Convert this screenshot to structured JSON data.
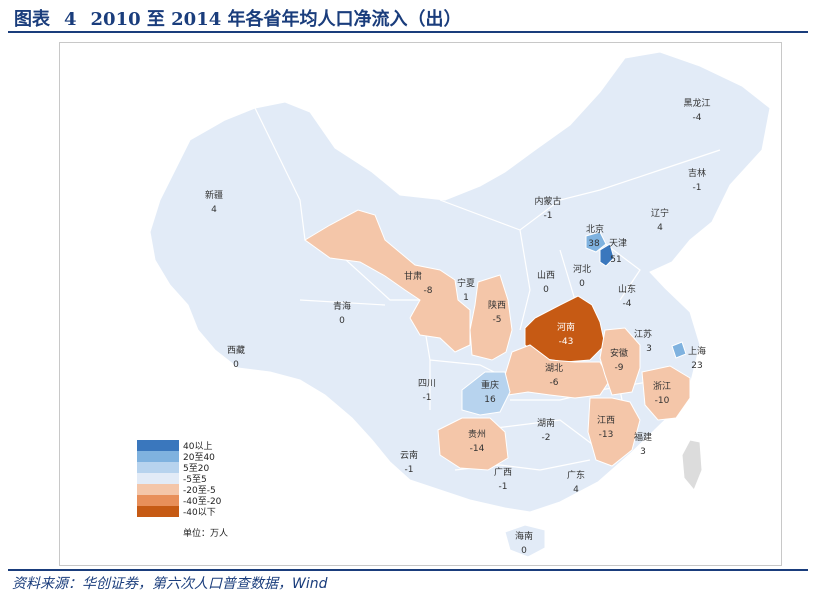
{
  "header": {
    "prefix": "图表",
    "number": "4",
    "title": "2010 至 2014 年各省年均人口净流入（出）"
  },
  "footer": {
    "source": "资料来源：华创证券，第六次人口普查数据，Wind"
  },
  "legend": {
    "items": [
      {
        "label": "40以上",
        "color": "#3a77bd"
      },
      {
        "label": "20至40",
        "color": "#7fb2df"
      },
      {
        "label": "5至20",
        "color": "#b7d3ee"
      },
      {
        "label": "-5至5",
        "color": "#e2ebf7"
      },
      {
        "label": "-20至-5",
        "color": "#f4c6a9"
      },
      {
        "label": "-40至-20",
        "color": "#e88f5a"
      },
      {
        "label": "-40以下",
        "color": "#c65a14"
      }
    ],
    "unit": "单位：万人"
  },
  "colors": {
    "title": "#1a3d7c",
    "land": "#e2ebf7",
    "border": "#ffffff"
  },
  "provinces": [
    {
      "name": "黑龙江",
      "value": "-4"
    },
    {
      "name": "吉林",
      "value": "-1"
    },
    {
      "name": "辽宁",
      "value": "4"
    },
    {
      "name": "内蒙古",
      "value": "-1"
    },
    {
      "name": "北京",
      "value": "38"
    },
    {
      "name": "天津",
      "value": "51"
    },
    {
      "name": "河北",
      "value": "0"
    },
    {
      "name": "山西",
      "value": "0"
    },
    {
      "name": "山东",
      "value": "-4"
    },
    {
      "name": "新疆",
      "value": "4"
    },
    {
      "name": "甘肃",
      "value": "-8"
    },
    {
      "name": "宁夏",
      "value": "1"
    },
    {
      "name": "陕西",
      "value": "-5"
    },
    {
      "name": "青海",
      "value": "0"
    },
    {
      "name": "西藏",
      "value": "0"
    },
    {
      "name": "河南",
      "value": "-43"
    },
    {
      "name": "江苏",
      "value": "3"
    },
    {
      "name": "上海",
      "value": "23"
    },
    {
      "name": "安徽",
      "value": "-9"
    },
    {
      "name": "湖北",
      "value": "-6"
    },
    {
      "name": "浙江",
      "value": "-10"
    },
    {
      "name": "四川",
      "value": "-1"
    },
    {
      "name": "重庆",
      "value": "16"
    },
    {
      "name": "湖南",
      "value": "-2"
    },
    {
      "name": "江西",
      "value": "-13"
    },
    {
      "name": "福建",
      "value": "3"
    },
    {
      "name": "贵州",
      "value": "-14"
    },
    {
      "name": "云南",
      "value": "-1"
    },
    {
      "name": "广西",
      "value": "-1"
    },
    {
      "name": "广东",
      "value": "4"
    },
    {
      "name": "海南",
      "value": "0"
    }
  ]
}
